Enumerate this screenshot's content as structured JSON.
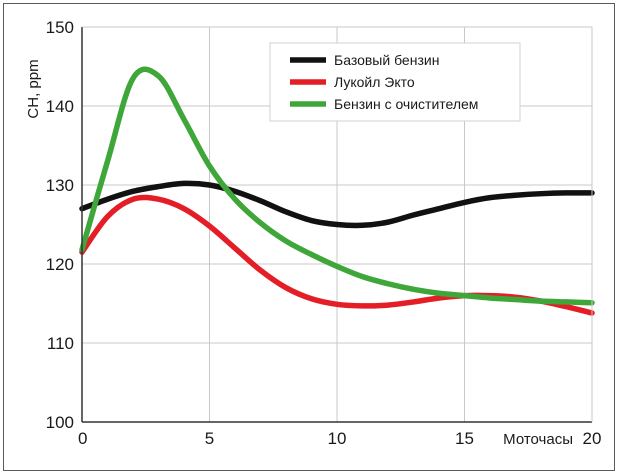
{
  "chart_data": {
    "type": "line",
    "title": "",
    "xlabel": "Моточасы",
    "ylabel": "CH, ppm",
    "xlim": [
      0,
      20
    ],
    "ylim": [
      100,
      150
    ],
    "x_ticks": [
      0,
      5,
      10,
      15,
      20
    ],
    "y_ticks": [
      100,
      110,
      120,
      130,
      140,
      150
    ],
    "grid": true,
    "legend_position": "top-right",
    "x": [
      0,
      1,
      2,
      3,
      4,
      5,
      6,
      7,
      8,
      9,
      10,
      11,
      12,
      13,
      14,
      15,
      16,
      17,
      18,
      19,
      20
    ],
    "series": [
      {
        "name": "Базовый бензин",
        "color": "#111111",
        "values": [
          127,
          128.2,
          129.2,
          129.8,
          130.2,
          130,
          129.2,
          128,
          126.6,
          125.5,
          125,
          124.9,
          125.3,
          126.2,
          127,
          127.8,
          128.4,
          128.7,
          128.9,
          129,
          129
        ]
      },
      {
        "name": "Лукойл Экто",
        "color": "#e41e26",
        "values": [
          121.5,
          126,
          128.2,
          128.2,
          127,
          124.8,
          122,
          119.2,
          117,
          115.6,
          114.9,
          114.7,
          114.8,
          115.2,
          115.7,
          116,
          116,
          115.8,
          115.3,
          114.6,
          113.8
        ]
      },
      {
        "name": "Бензин с очистителем",
        "color": "#3fa63a",
        "values": [
          121.8,
          133,
          143.5,
          143.8,
          138.3,
          132.4,
          128.2,
          125.2,
          122.9,
          121.2,
          119.7,
          118.4,
          117.5,
          116.8,
          116.3,
          116,
          115.7,
          115.5,
          115.3,
          115.2,
          115.1
        ]
      }
    ]
  }
}
